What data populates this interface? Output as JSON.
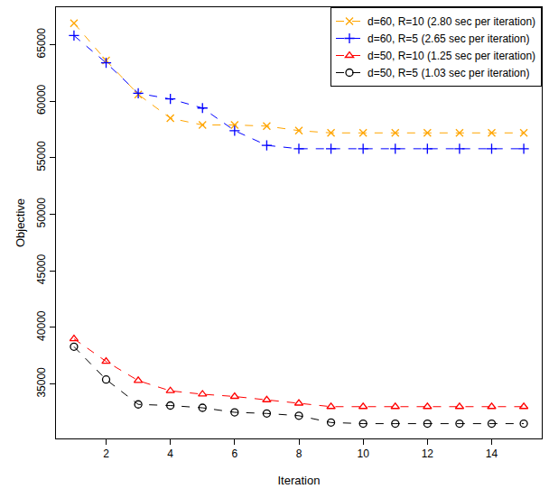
{
  "chart_data": {
    "type": "line",
    "x_label": "Iteration",
    "y_label": "Objective",
    "x": [
      1,
      2,
      3,
      4,
      5,
      6,
      7,
      8,
      9,
      10,
      11,
      12,
      13,
      14,
      15
    ],
    "xlim": [
      0.44,
      15.56
    ],
    "xticks": [
      2,
      4,
      6,
      8,
      10,
      12,
      14
    ],
    "ylim": [
      30190,
      68310
    ],
    "yticks": [
      35000,
      40000,
      45000,
      50000,
      55000,
      60000,
      65000
    ],
    "grid": false,
    "legend": "top-right",
    "line_style": "dashed",
    "series": [
      {
        "name": "d=60, R=10 (2.80 sec per iteration)",
        "color": "#ffa500",
        "marker": "x",
        "values": [
          66900,
          63600,
          60600,
          58500,
          57900,
          57900,
          57800,
          57400,
          57200,
          57200,
          57200,
          57200,
          57200,
          57200,
          57200
        ]
      },
      {
        "name": "d=60, R=5 (2.65 sec per iteration)",
        "color": "#0000ff",
        "marker": "plus",
        "values": [
          65800,
          63400,
          60700,
          60200,
          59400,
          57400,
          56100,
          55800,
          55800,
          55800,
          55800,
          55800,
          55800,
          55800,
          55800
        ]
      },
      {
        "name": "d=50, R=10 (1.25 sec per iteration)",
        "color": "#ff0000",
        "marker": "triangle",
        "values": [
          39000,
          37000,
          35300,
          34400,
          34100,
          33900,
          33600,
          33300,
          33000,
          33000,
          33000,
          33000,
          33000,
          33000,
          33000
        ]
      },
      {
        "name": "d=50, R=5 (1.03 sec per iteration)",
        "color": "#000000",
        "marker": "circle",
        "values": [
          38300,
          35400,
          33200,
          33100,
          32900,
          32500,
          32400,
          32200,
          31600,
          31500,
          31500,
          31500,
          31500,
          31500,
          31500
        ]
      }
    ]
  }
}
